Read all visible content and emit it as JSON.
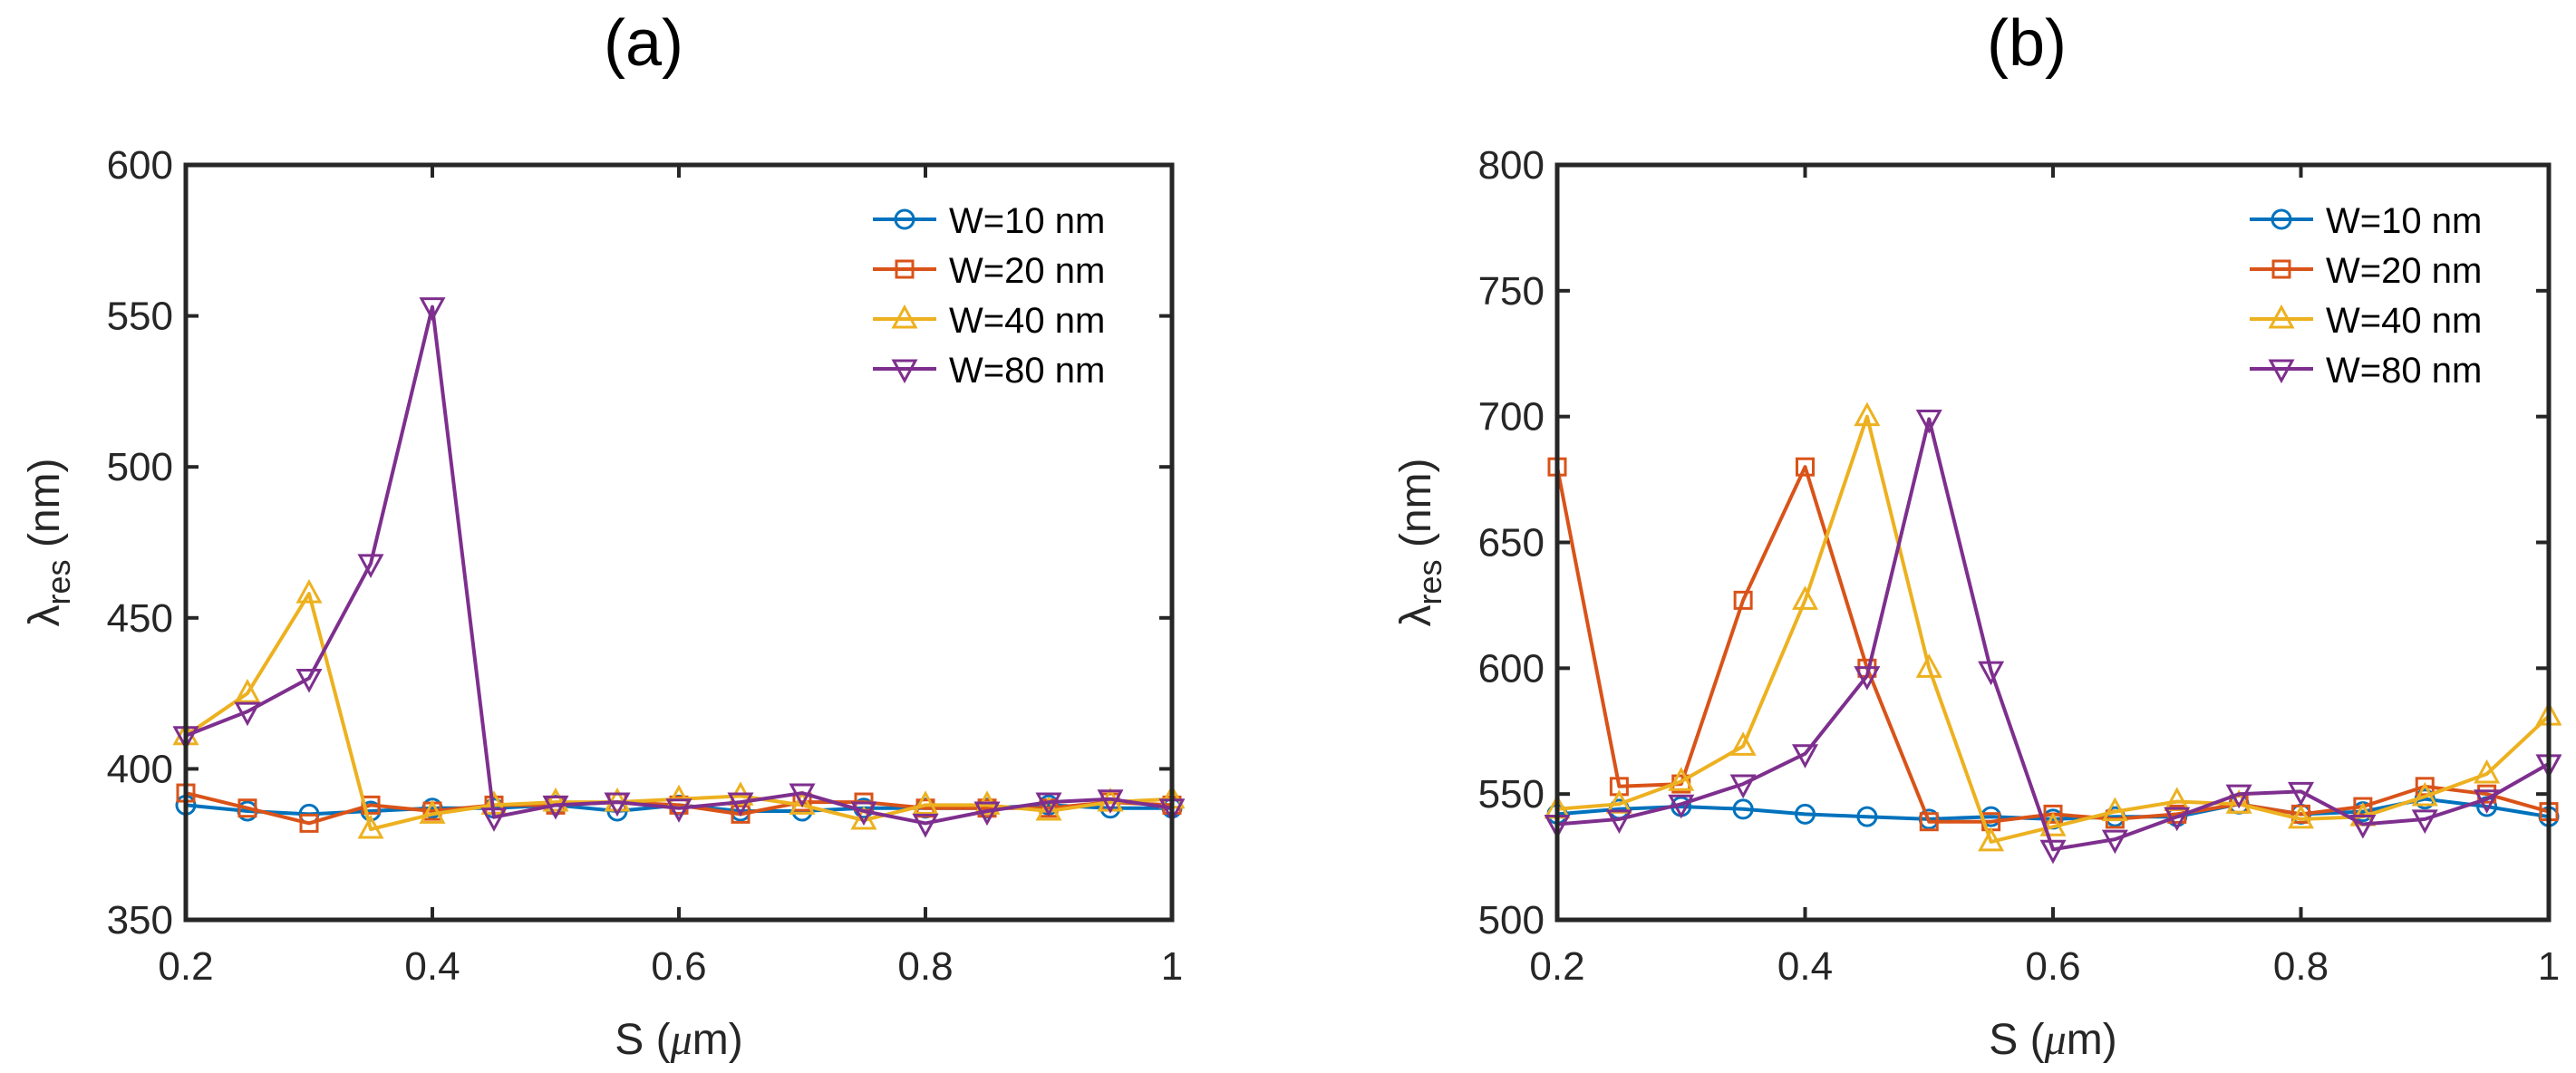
{
  "colors": {
    "series": [
      "#0072BD",
      "#D95319",
      "#EDB120",
      "#7E2F8E"
    ],
    "axis": "#262626"
  },
  "chart_data": [
    {
      "panel_label": "(a)",
      "type": "line",
      "xlabel_main": "S (",
      "xlabel_mu": "μ",
      "xlabel_tail": "m)",
      "ylabel_main": "λ",
      "ylabel_sub": "res",
      "ylabel_tail": " (nm)",
      "xlim": [
        0.2,
        1.0
      ],
      "ylim": [
        350,
        600
      ],
      "xticks": [
        0.2,
        0.4,
        0.6,
        0.8,
        1.0
      ],
      "xtick_labels": [
        "0.2",
        "0.4",
        "0.6",
        "0.8",
        "1"
      ],
      "yticks": [
        350,
        400,
        450,
        500,
        550,
        600
      ],
      "ytick_labels": [
        "350",
        "400",
        "450",
        "500",
        "550",
        "600"
      ],
      "grid": false,
      "legend_position": "top-right",
      "x": [
        0.2,
        0.25,
        0.3,
        0.35,
        0.4,
        0.45,
        0.5,
        0.55,
        0.6,
        0.65,
        0.7,
        0.75,
        0.8,
        0.85,
        0.9,
        0.95,
        1.0
      ],
      "series": [
        {
          "name": "W=10 nm",
          "marker": "circle",
          "values": [
            388,
            386,
            385,
            386,
            387,
            387,
            388,
            386,
            388,
            386,
            386,
            387,
            387,
            387,
            388,
            387,
            387
          ]
        },
        {
          "name": "W=20 nm",
          "marker": "square",
          "values": [
            392,
            387,
            382,
            388,
            386,
            388,
            388,
            389,
            388,
            385,
            389,
            389,
            387,
            387,
            387,
            389,
            388
          ]
        },
        {
          "name": "W=40 nm",
          "marker": "triangle-up",
          "values": [
            411,
            425,
            458,
            380,
            385,
            388,
            389,
            389,
            390,
            391,
            388,
            383,
            388,
            388,
            386,
            389,
            390
          ]
        },
        {
          "name": "W=80 nm",
          "marker": "triangle-down",
          "values": [
            411,
            419,
            430,
            468,
            553,
            384,
            388,
            389,
            387,
            389,
            392,
            386,
            382,
            386,
            389,
            390,
            387
          ]
        }
      ]
    },
    {
      "panel_label": "(b)",
      "type": "line",
      "xlabel_main": "S (",
      "xlabel_mu": "μ",
      "xlabel_tail": "m)",
      "ylabel_main": "λ",
      "ylabel_sub": "res",
      "ylabel_tail": " (nm)",
      "xlim": [
        0.2,
        1.0
      ],
      "ylim": [
        500,
        800
      ],
      "xticks": [
        0.2,
        0.4,
        0.6,
        0.8,
        1.0
      ],
      "xtick_labels": [
        "0.2",
        "0.4",
        "0.6",
        "0.8",
        "1"
      ],
      "yticks": [
        500,
        550,
        600,
        650,
        700,
        750,
        800
      ],
      "ytick_labels": [
        "500",
        "550",
        "600",
        "650",
        "700",
        "750",
        "800"
      ],
      "grid": false,
      "legend_position": "top-right",
      "x": [
        0.2,
        0.25,
        0.3,
        0.35,
        0.4,
        0.45,
        0.5,
        0.55,
        0.6,
        0.65,
        0.7,
        0.75,
        0.8,
        0.85,
        0.9,
        0.95,
        1.0
      ],
      "series": [
        {
          "name": "W=10 nm",
          "marker": "circle",
          "values": [
            542,
            544,
            545,
            544,
            542,
            541,
            540,
            541,
            540,
            541,
            541,
            546,
            542,
            543,
            548,
            545,
            541
          ]
        },
        {
          "name": "W=20 nm",
          "marker": "square",
          "values": [
            680,
            553,
            554,
            627,
            680,
            600,
            539,
            539,
            542,
            540,
            542,
            546,
            542,
            545,
            553,
            550,
            543
          ]
        },
        {
          "name": "W=40 nm",
          "marker": "triangle-up",
          "values": [
            544,
            546,
            555,
            569,
            627,
            700,
            600,
            531,
            537,
            543,
            547,
            546,
            540,
            541,
            549,
            558,
            581
          ]
        },
        {
          "name": "W=80 nm",
          "marker": "triangle-down",
          "values": [
            538,
            540,
            546,
            554,
            566,
            597,
            699,
            599,
            528,
            532,
            541,
            550,
            551,
            538,
            540,
            548,
            562
          ]
        }
      ]
    }
  ]
}
